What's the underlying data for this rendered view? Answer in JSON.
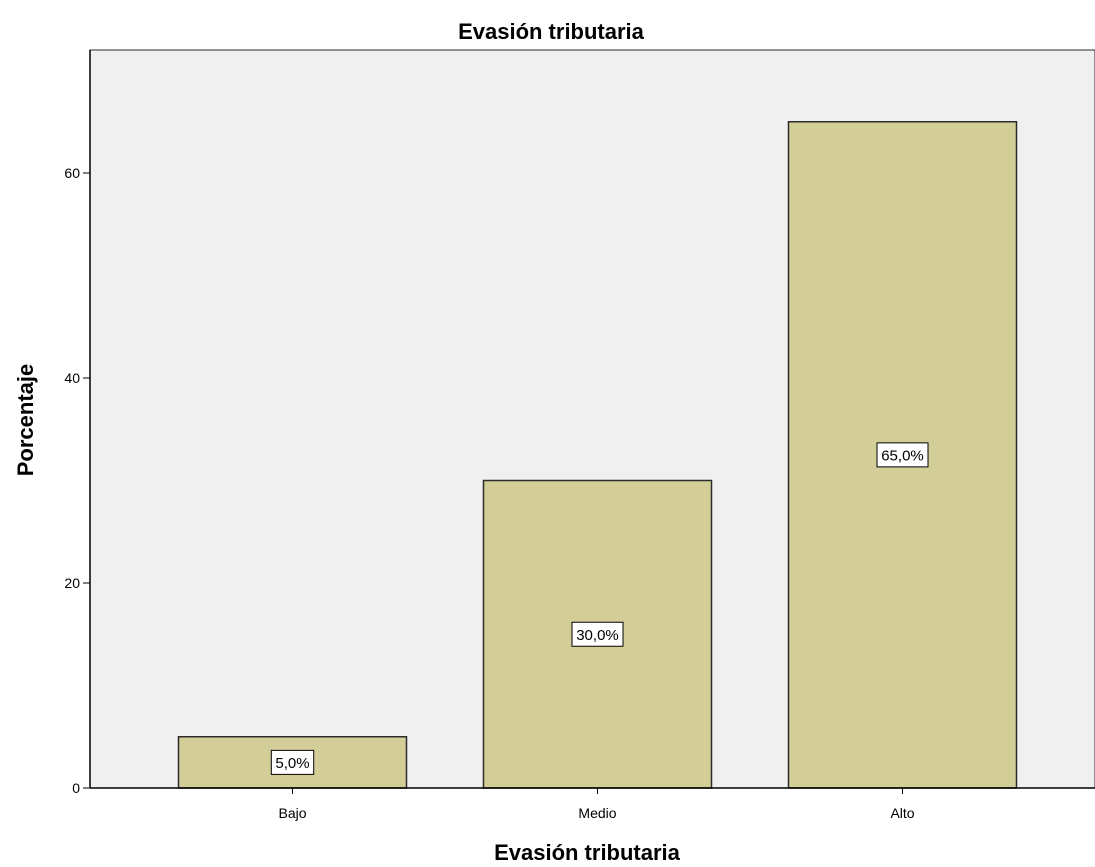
{
  "chart_data": {
    "type": "bar",
    "title": "Evasión tributaria",
    "xlabel": "Evasión tributaria",
    "ylabel": "Porcentaje",
    "categories": [
      "Bajo",
      "Medio",
      "Alto"
    ],
    "values": [
      5.0,
      30.0,
      65.0
    ],
    "data_labels": [
      "5,0%",
      "30,0%",
      "65,0%"
    ],
    "yticks": [
      0,
      20,
      40,
      60
    ],
    "ylim": [
      0,
      72
    ],
    "grid": false,
    "legend": "none"
  },
  "colors": {
    "plot_background": "#f0f0f0",
    "bar_fill": "#d3ce97",
    "bar_stroke": "#2b2b2b",
    "axis": "#000000"
  }
}
